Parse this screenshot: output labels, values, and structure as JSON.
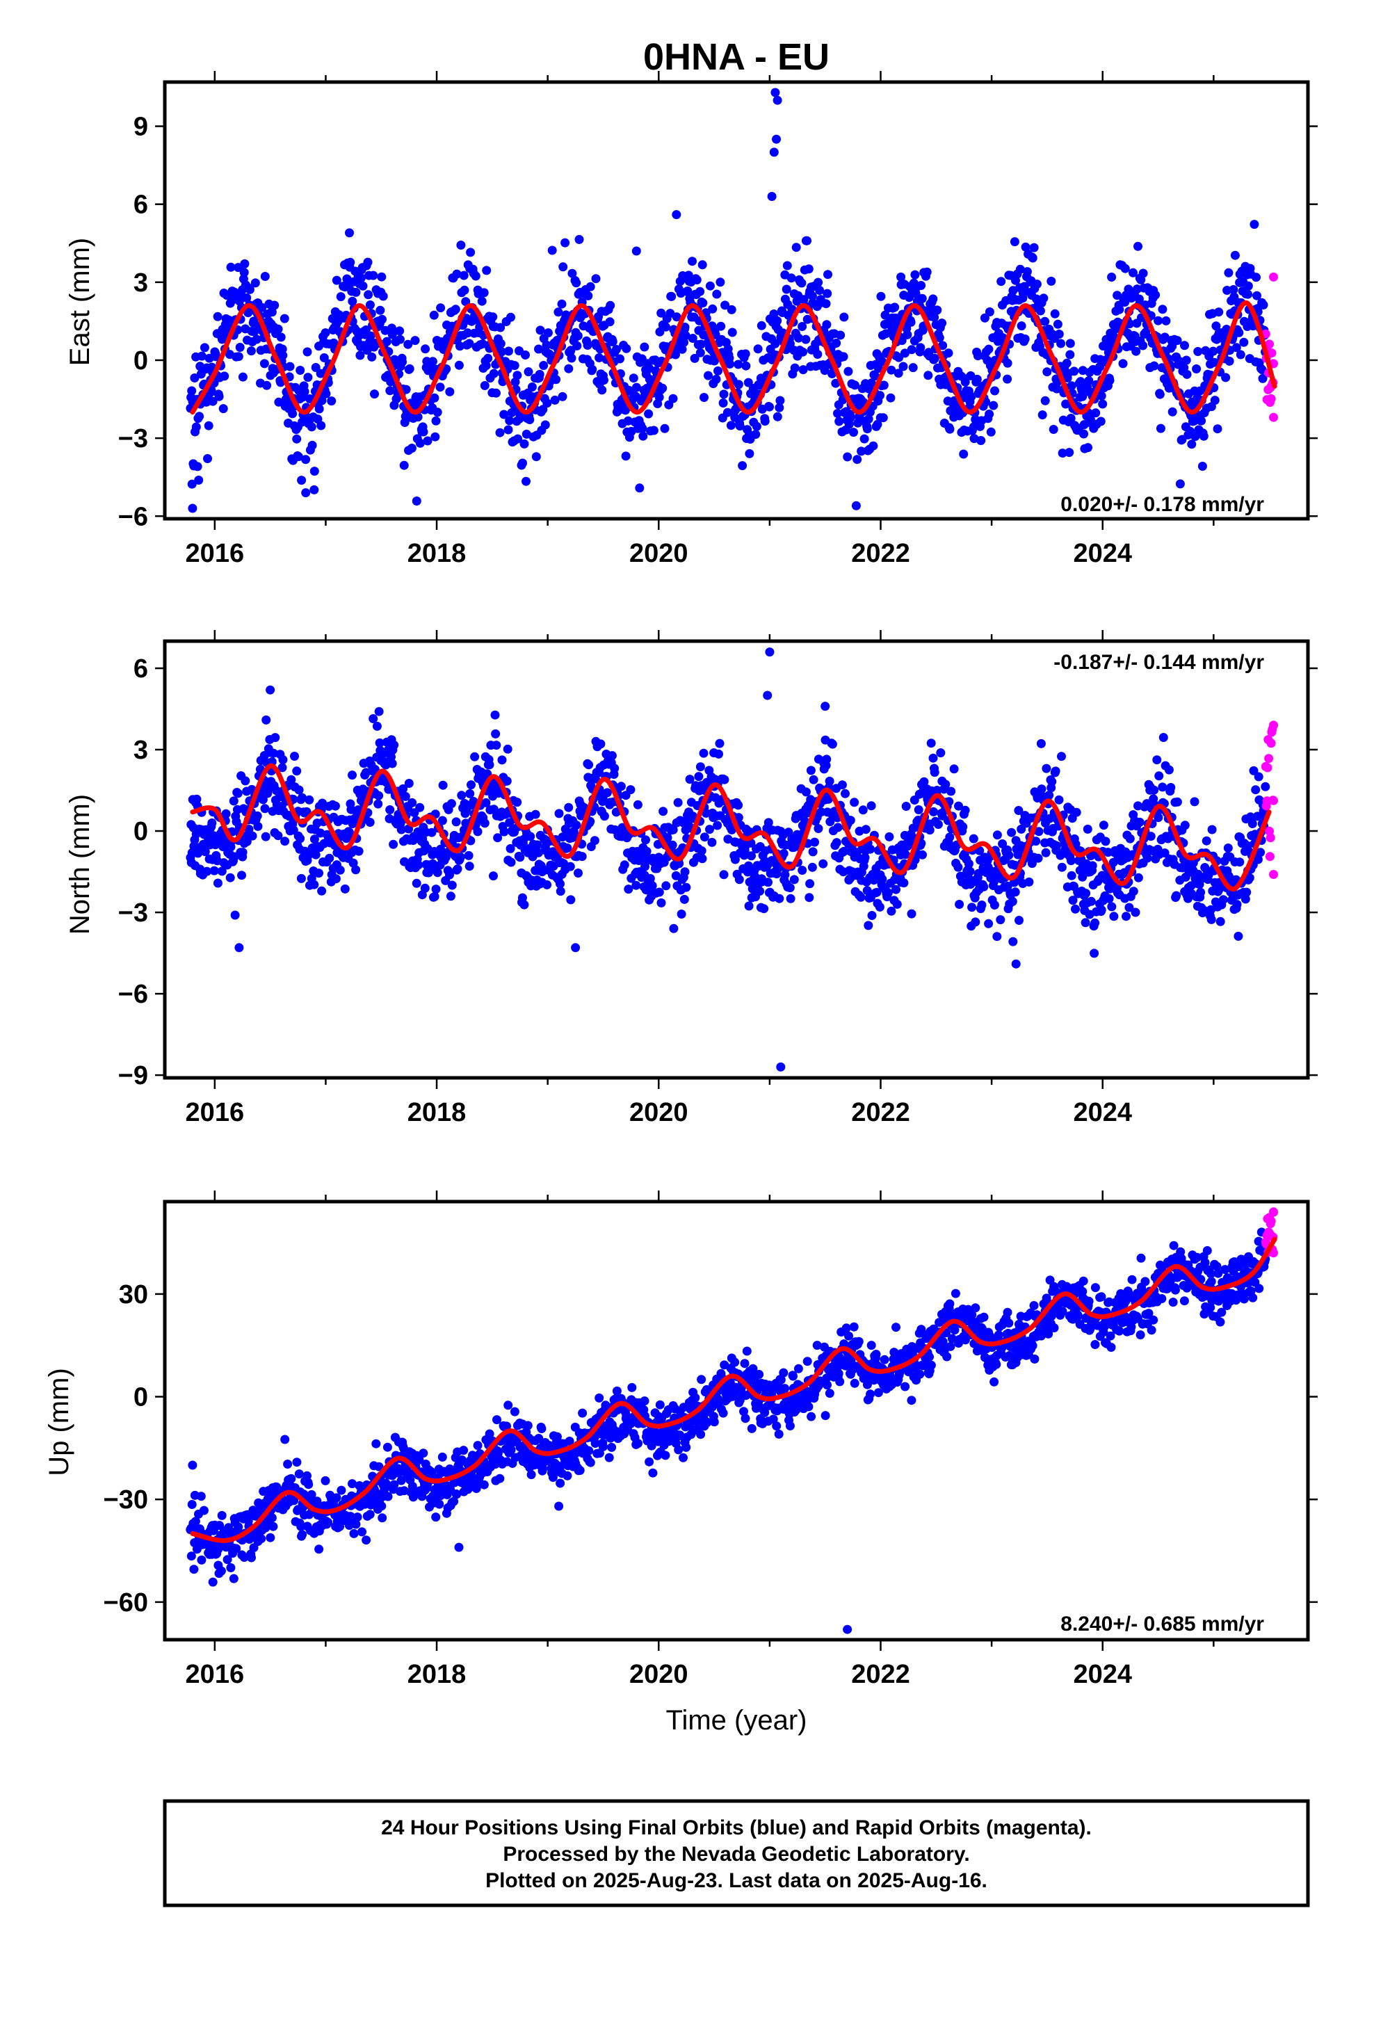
{
  "title": "0HNA - EU",
  "xlabel": "Time (year)",
  "caption": {
    "line1": "24 Hour Positions Using Final Orbits (blue) and Rapid Orbits (magenta).",
    "line2": "Processed by the Nevada Geodetic Laboratory.",
    "line3": "Plotted on 2025-Aug-23. Last data on 2025-Aug-16."
  },
  "colors": {
    "final_orbits": "#0000ff",
    "rapid_orbits": "#ff00ff",
    "model": "#ff0000"
  },
  "chart_data": [
    {
      "type": "scatter",
      "ylabel": "East (mm)",
      "rate_label": "0.020+/- 0.178 mm/yr",
      "xlim": [
        2015.55,
        2025.85
      ],
      "ylim": [
        -6.1,
        10.7
      ],
      "xticks": [
        2016,
        2018,
        2020,
        2022,
        2024
      ],
      "yticks": [
        -6,
        -3,
        0,
        3,
        6,
        9
      ],
      "ytick_labels": [
        "−6",
        "−3",
        "0",
        "3",
        "6",
        "9"
      ],
      "series_model": {
        "x": [
          2015.8,
          2016.0,
          2016.3,
          2016.55,
          2016.8,
          2017.05,
          2017.3,
          2017.55,
          2017.8,
          2018.05,
          2018.3,
          2018.55,
          2018.8,
          2019.05,
          2019.3,
          2019.55,
          2019.8,
          2020.05,
          2020.3,
          2020.55,
          2020.8,
          2021.05,
          2021.3,
          2021.55,
          2021.8,
          2022.05,
          2022.3,
          2022.55,
          2022.8,
          2023.05,
          2023.3,
          2023.55,
          2023.8,
          2024.05,
          2024.3,
          2024.55,
          2024.8,
          2025.05,
          2025.3,
          2025.55
        ],
        "y": [
          -2.0,
          -0.5,
          2.1,
          0.1,
          -2.0,
          -0.2,
          2.1,
          0.1,
          -2.0,
          -0.2,
          2.1,
          0.1,
          -2.0,
          -0.2,
          2.1,
          0.1,
          -2.0,
          -0.2,
          2.1,
          0.1,
          -2.0,
          -0.2,
          2.1,
          0.1,
          -2.0,
          -0.2,
          2.1,
          0.1,
          -2.0,
          -0.2,
          2.1,
          0.1,
          -2.0,
          -0.2,
          2.1,
          0.1,
          -2.0,
          -0.2,
          2.2,
          -1.0
        ]
      },
      "seasonal": {
        "trend_per_year": 0.02,
        "annual_amp": 2.0,
        "annual_peak": 0.3,
        "semi_amp": 0.15,
        "semi_phase": 0.1,
        "offset": 0.05,
        "noise": 1.1
      },
      "outliers": [
        [
          2015.8,
          -5.7
        ],
        [
          2016.82,
          -5.1
        ],
        [
          2021.05,
          10.3
        ],
        [
          2021.07,
          10.0
        ],
        [
          2021.06,
          8.5
        ],
        [
          2021.04,
          8.0
        ],
        [
          2021.02,
          6.3
        ],
        [
          2020.16,
          5.6
        ],
        [
          2021.78,
          -5.6
        ],
        [
          2019.8,
          4.2
        ]
      ],
      "rapid": {
        "x_start": 2025.47,
        "x_end": 2025.54,
        "y_min": -2.2,
        "y_max": 3.2,
        "count": 14
      }
    },
    {
      "type": "scatter",
      "ylabel": "North (mm)",
      "rate_label": "-0.187+/- 0.144 mm/yr",
      "xlim": [
        2015.55,
        2025.85
      ],
      "ylim": [
        -9.1,
        7.0
      ],
      "xticks": [
        2016,
        2018,
        2020,
        2022,
        2024
      ],
      "yticks": [
        -9,
        -6,
        -3,
        0,
        3,
        6
      ],
      "ytick_labels": [
        "−9",
        "−6",
        "−3",
        "0",
        "3",
        "6"
      ],
      "series_model": {
        "x": [
          2015.8,
          2016.0,
          2016.2,
          2016.5,
          2016.75,
          2016.95,
          2017.2,
          2017.5,
          2017.75,
          2017.95,
          2018.2,
          2018.5,
          2018.75,
          2018.95,
          2019.2,
          2019.5,
          2019.75,
          2019.95,
          2020.2,
          2020.5,
          2020.75,
          2020.95,
          2021.2,
          2021.5,
          2021.75,
          2021.95,
          2022.2,
          2022.5,
          2022.75,
          2022.95,
          2023.2,
          2023.5,
          2023.75,
          2023.95,
          2024.2,
          2024.5,
          2024.75,
          2024.95,
          2025.2,
          2025.5
        ],
        "y": [
          0.7,
          0.8,
          -0.3,
          2.4,
          0.4,
          0.7,
          -0.6,
          2.2,
          0.3,
          0.5,
          -0.7,
          2.0,
          0.2,
          0.3,
          -0.9,
          1.9,
          0.0,
          0.1,
          -1.0,
          1.7,
          -0.2,
          -0.1,
          -1.3,
          1.5,
          -0.4,
          -0.3,
          -1.5,
          1.3,
          -0.6,
          -0.5,
          -1.7,
          1.1,
          -0.8,
          -0.7,
          -1.9,
          0.9,
          -0.9,
          -0.9,
          -2.1,
          0.7
        ]
      },
      "seasonal": {
        "trend_per_year": -0.187,
        "annual_amp": 1.35,
        "annual_peak": 0.5,
        "semi_amp": 0.4,
        "semi_phase": 0.0,
        "offset": 0.65,
        "noise": 0.9
      },
      "outliers": [
        [
          2021.0,
          6.6
        ],
        [
          2020.98,
          5.0
        ],
        [
          2021.1,
          -8.7
        ],
        [
          2016.22,
          -4.3
        ],
        [
          2023.22,
          -4.9
        ],
        [
          2019.25,
          -4.3
        ],
        [
          2016.5,
          5.2
        ],
        [
          2021.5,
          4.6
        ]
      ],
      "rapid": {
        "x_start": 2025.47,
        "x_end": 2025.54,
        "y_min": -1.6,
        "y_max": 3.9,
        "count": 14
      }
    },
    {
      "type": "scatter",
      "ylabel": "Up (mm)",
      "rate_label": "8.240+/- 0.685 mm/yr",
      "xlim": [
        2015.55,
        2025.85
      ],
      "ylim": [
        -71,
        57
      ],
      "xticks": [
        2016,
        2018,
        2020,
        2022,
        2024
      ],
      "yticks": [
        -60,
        -30,
        0,
        30
      ],
      "ytick_labels": [
        "−60",
        "−30",
        "0",
        "30"
      ],
      "series_model": {
        "x": [
          2015.8,
          2016.1,
          2016.35,
          2016.65,
          2016.9,
          2017.1,
          2017.35,
          2017.65,
          2017.9,
          2018.1,
          2018.35,
          2018.65,
          2018.9,
          2019.1,
          2019.35,
          2019.65,
          2019.9,
          2020.1,
          2020.35,
          2020.65,
          2020.9,
          2021.1,
          2021.35,
          2021.65,
          2021.9,
          2022.1,
          2022.35,
          2022.65,
          2022.9,
          2023.1,
          2023.35,
          2023.65,
          2023.9,
          2024.1,
          2024.35,
          2024.65,
          2024.9,
          2025.1,
          2025.35,
          2025.55
        ],
        "y": [
          -40,
          -42,
          -38,
          -28,
          -33,
          -33,
          -28,
          -18,
          -24,
          -24,
          -20,
          -10,
          -16,
          -16,
          -12,
          -2,
          -8,
          -8,
          -4,
          6,
          0,
          0,
          4,
          14,
          8,
          8,
          12,
          22,
          16,
          16,
          20,
          30,
          24,
          24,
          28,
          38,
          32,
          32,
          36,
          46
        ]
      },
      "seasonal": {
        "trend_per_year": 8.24,
        "annual_amp": 4.5,
        "annual_peak": 0.65,
        "semi_amp": 0.8,
        "semi_phase": 0.2,
        "offset": -41.5,
        "noise": 4.0
      },
      "outliers": [
        [
          2021.7,
          -68
        ],
        [
          2015.8,
          -20
        ],
        [
          2018.2,
          -44
        ],
        [
          2019.1,
          -32
        ]
      ],
      "rapid": {
        "x_start": 2025.47,
        "x_end": 2025.54,
        "y_min": 42,
        "y_max": 54,
        "count": 14
      }
    }
  ]
}
